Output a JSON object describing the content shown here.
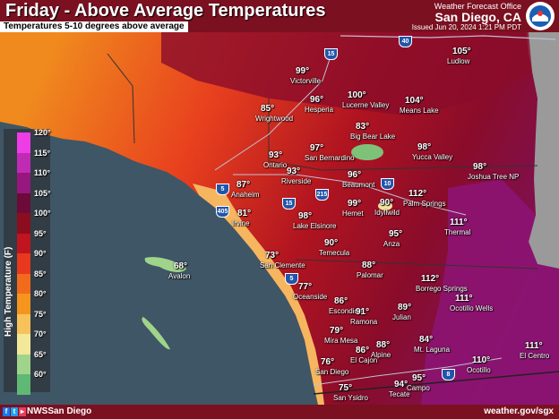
{
  "header": {
    "title": "Friday - Above Average Temperatures",
    "subtitle": "Temperatures 5-10 degrees above average",
    "office_line": "Weather Forecast Office",
    "office_city": "San Diego, CA",
    "issued": "Issued Jun 20, 2024 1:21 PM PDT"
  },
  "footer": {
    "handle": "NWSSan Diego",
    "url": "weather.gov/sgx"
  },
  "legend": {
    "title": "High Temperature (F)",
    "items": [
      {
        "label": "120°",
        "color": "#ee3ce6"
      },
      {
        "label": "115°",
        "color": "#c02bb4"
      },
      {
        "label": "110°",
        "color": "#96177e"
      },
      {
        "label": "105°",
        "color": "#6c0a3a"
      },
      {
        "label": "100°",
        "color": "#8c0d1e"
      },
      {
        "label": "95°",
        "color": "#c0141e"
      },
      {
        "label": "90°",
        "color": "#e8381e"
      },
      {
        "label": "85°",
        "color": "#f26a1c"
      },
      {
        "label": "80°",
        "color": "#f5951e"
      },
      {
        "label": "75°",
        "color": "#f8c25a"
      },
      {
        "label": "70°",
        "color": "#f3e79a"
      },
      {
        "label": "65°",
        "color": "#9fd48a"
      },
      {
        "label": "60°",
        "color": "#5fb873"
      }
    ]
  },
  "highways": [
    "40",
    "15",
    "5",
    "405",
    "215",
    "10",
    "15",
    "5",
    "8"
  ],
  "temps": [
    {
      "v": "105°",
      "c": "Ludlow"
    },
    {
      "v": "99°",
      "c": "Victorville"
    },
    {
      "v": "96°",
      "c": "Hesperia"
    },
    {
      "v": "100°",
      "c": "Lucerne Valley"
    },
    {
      "v": "104°",
      "c": "Means Lake"
    },
    {
      "v": "85°",
      "c": "Wrightwood"
    },
    {
      "v": "83°",
      "c": "Big Bear Lake"
    },
    {
      "v": "97°",
      "c": "San Bernardino"
    },
    {
      "v": "98°",
      "c": "Yucca Valley"
    },
    {
      "v": "93°",
      "c": "Ontario"
    },
    {
      "v": "93°",
      "c": "Riverside"
    },
    {
      "v": "96°",
      "c": "Beaumont"
    },
    {
      "v": "98°",
      "c": "Joshua Tree NP"
    },
    {
      "v": "87°",
      "c": "Anaheim"
    },
    {
      "v": "112°",
      "c": "Palm Springs"
    },
    {
      "v": "99°",
      "c": "Hemet"
    },
    {
      "v": "90°",
      "c": "Idyllwild"
    },
    {
      "v": "81°",
      "c": "Irvine"
    },
    {
      "v": "98°",
      "c": "Lake Elsinore"
    },
    {
      "v": "111°",
      "c": "Thermal"
    },
    {
      "v": "95°",
      "c": "Anza"
    },
    {
      "v": "90°",
      "c": "Temecula"
    },
    {
      "v": "68°",
      "c": "Avalon"
    },
    {
      "v": "73°",
      "c": "San Clemente"
    },
    {
      "v": "88°",
      "c": "Palomar"
    },
    {
      "v": "112°",
      "c": "Borrego Springs"
    },
    {
      "v": "77°",
      "c": "Oceanside"
    },
    {
      "v": "86°",
      "c": "Escondido"
    },
    {
      "v": "111°",
      "c": "Ocotillo Wells"
    },
    {
      "v": "91°",
      "c": "Ramona"
    },
    {
      "v": "89°",
      "c": "Julian"
    },
    {
      "v": "79°",
      "c": "Mira Mesa"
    },
    {
      "v": "84°",
      "c": "Mt. Laguna"
    },
    {
      "v": "86°",
      "c": "El Cajon"
    },
    {
      "v": "88°",
      "c": "Alpine"
    },
    {
      "v": "111°",
      "c": "El Centro"
    },
    {
      "v": "76°",
      "c": "San Diego"
    },
    {
      "v": "110°",
      "c": "Ocotillo"
    },
    {
      "v": "95°",
      "c": "Campo"
    },
    {
      "v": "94°",
      "c": "Tecate"
    },
    {
      "v": "75°",
      "c": "San Ysidro"
    }
  ]
}
